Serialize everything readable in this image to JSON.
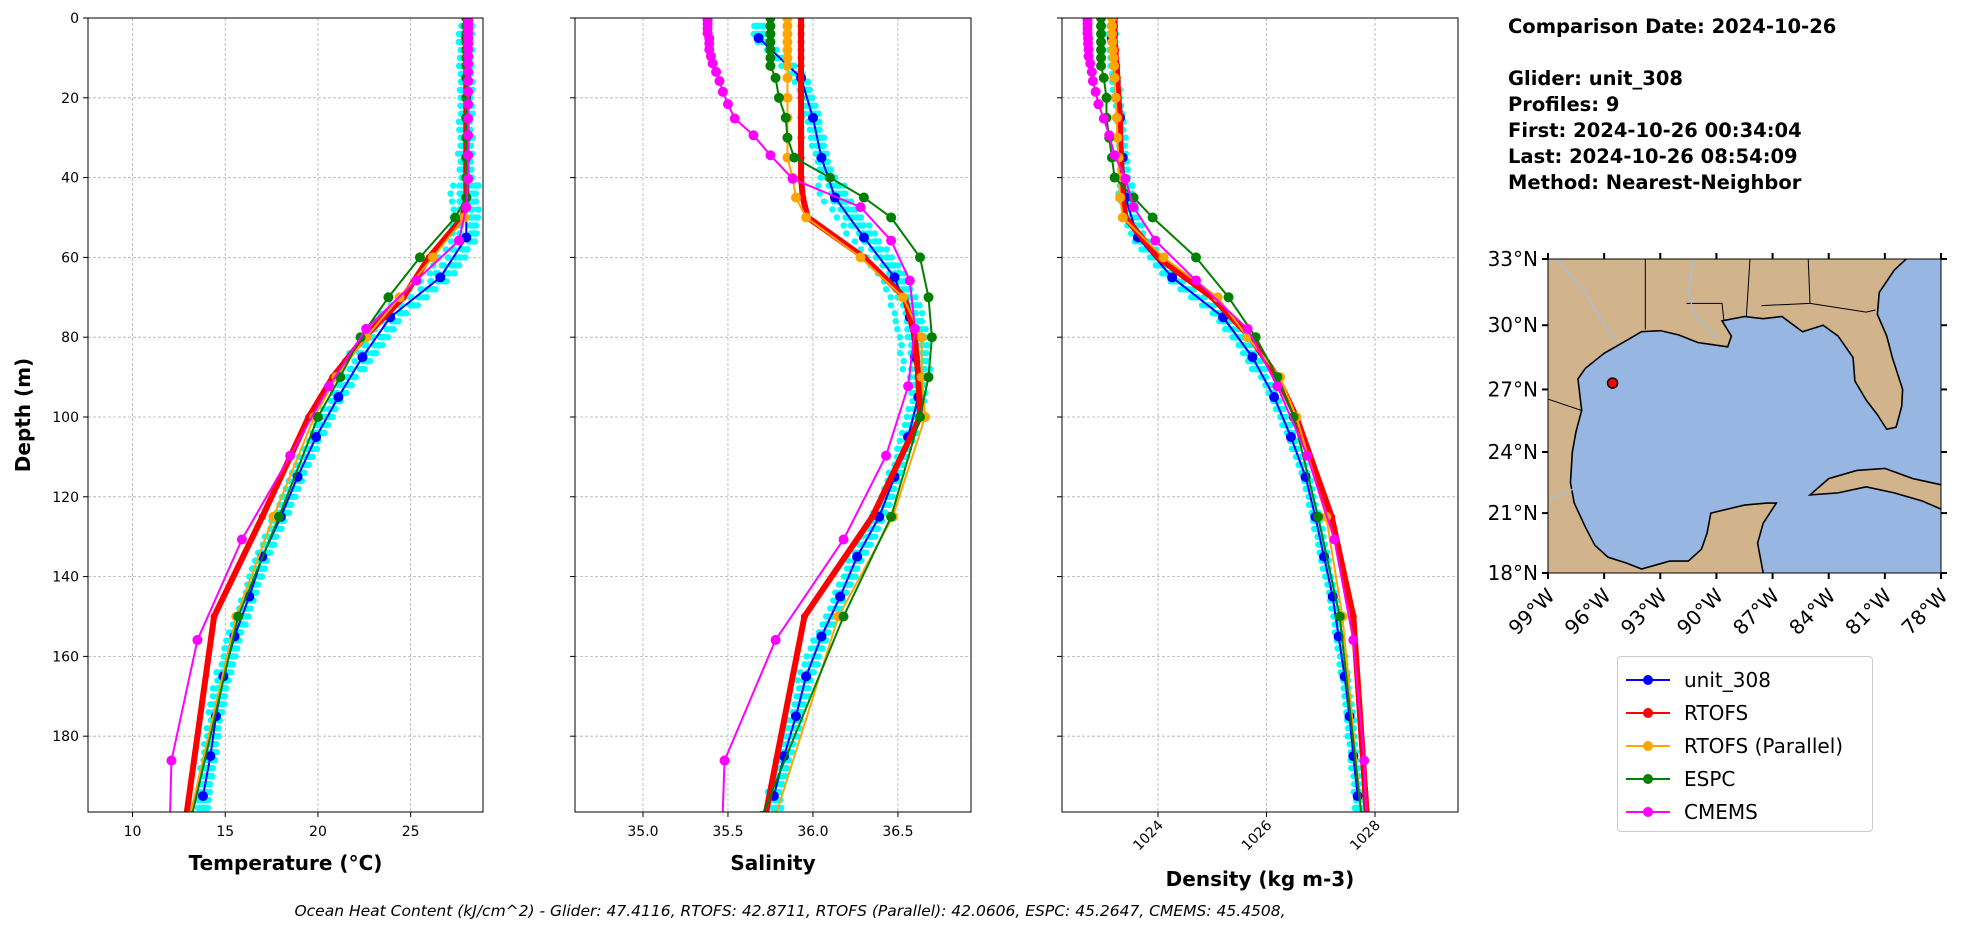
{
  "info": {
    "comparison_date": "Comparison Date: 2024-10-26",
    "glider": "Glider: unit_308",
    "profiles": "Profiles: 9",
    "first": "First: 2024-10-26 00:34:04",
    "last": "Last: 2024-10-26 08:54:09",
    "method": "Method: Nearest-Neighbor"
  },
  "caption": "Ocean Heat Content (kJ/cm^2) - Glider: 47.4116,  RTOFS: 42.8711,  RTOFS (Parallel): 42.0606,  ESPC: 45.2647,  CMEMS: 45.4508,",
  "legend": [
    {
      "label": "unit_308",
      "color": "#0000ff"
    },
    {
      "label": "RTOFS",
      "color": "#ff0000"
    },
    {
      "label": "RTOFS (Parallel)",
      "color": "#ffa500"
    },
    {
      "label": "ESPC",
      "color": "#008000"
    },
    {
      "label": "CMEMS",
      "color": "#ff00ff"
    }
  ],
  "chart_data": [
    {
      "type": "line",
      "panel": "temperature",
      "xlabel": "Temperature (°C)",
      "ylabel": "Depth (m)",
      "xlim": [
        7.6,
        28.9
      ],
      "ylim": [
        199,
        0
      ],
      "xticks": [
        "10",
        "15",
        "20",
        "25"
      ],
      "yticks": [
        "0",
        "20",
        "40",
        "60",
        "80",
        "100",
        "120",
        "140",
        "160",
        "180"
      ],
      "grid": true
    },
    {
      "type": "line",
      "panel": "salinity",
      "xlabel": "Salinity",
      "xlim": [
        34.6,
        36.93
      ],
      "ylim": [
        199,
        0
      ],
      "xticks": [
        "35.0",
        "35.5",
        "36.0",
        "36.5"
      ],
      "grid": true
    },
    {
      "type": "line",
      "panel": "density",
      "xlabel": "Density (kg m-3)",
      "xlim": [
        1022.23,
        1029.53
      ],
      "ylim": [
        199,
        0
      ],
      "xticks": [
        "1024",
        "1026",
        "1028"
      ],
      "grid": true
    }
  ],
  "series": [
    {
      "name": "unit_308",
      "color": "#0000ff",
      "raw_profiles_color": "#00ffff",
      "depth": [
        5,
        15,
        25,
        35,
        45,
        55,
        65,
        75,
        85,
        95,
        105,
        115,
        125,
        135,
        145,
        155,
        165,
        175,
        185,
        195
      ],
      "temperature": [
        28.0,
        28.0,
        28.0,
        28.0,
        28.0,
        28.0,
        26.6,
        23.9,
        22.4,
        21.1,
        19.9,
        18.9,
        18.0,
        17.0,
        16.3,
        15.5,
        14.9,
        14.5,
        14.2,
        13.8
      ],
      "salinity": [
        35.68,
        35.93,
        36.0,
        36.05,
        36.13,
        36.3,
        36.48,
        36.57,
        36.6,
        36.62,
        36.56,
        36.48,
        36.39,
        36.26,
        36.16,
        36.05,
        35.96,
        35.9,
        35.83,
        35.77
      ],
      "density": [
        1023.15,
        1023.2,
        1023.3,
        1023.35,
        1023.4,
        1023.63,
        1024.26,
        1025.2,
        1025.74,
        1026.14,
        1026.45,
        1026.72,
        1026.9,
        1027.06,
        1027.22,
        1027.33,
        1027.44,
        1027.53,
        1027.6,
        1027.68
      ]
    },
    {
      "name": "RTOFS",
      "color": "#ff0000",
      "depth": [
        0,
        2,
        4,
        6,
        8,
        10,
        12,
        15,
        20,
        25,
        30,
        35,
        40,
        45,
        50,
        60,
        70,
        80,
        90,
        100,
        125,
        150,
        200
      ],
      "temperature": [
        28.0,
        28.0,
        28.0,
        28.0,
        28.0,
        28.0,
        28.0,
        28.0,
        28.0,
        28.0,
        28.0,
        28.0,
        28.0,
        28.0,
        27.8,
        26.0,
        24.6,
        22.5,
        20.8,
        19.5,
        17.0,
        14.4,
        12.9
      ],
      "salinity": [
        35.93,
        35.93,
        35.93,
        35.93,
        35.93,
        35.93,
        35.93,
        35.93,
        35.93,
        35.93,
        35.93,
        35.93,
        35.93,
        35.94,
        35.97,
        36.3,
        36.54,
        36.6,
        36.62,
        36.63,
        36.35,
        35.95,
        35.72
      ],
      "density": [
        1023.2,
        1023.2,
        1023.2,
        1023.2,
        1023.22,
        1023.22,
        1023.24,
        1023.25,
        1023.27,
        1023.3,
        1023.3,
        1023.32,
        1023.33,
        1023.35,
        1023.4,
        1024.0,
        1025.0,
        1025.7,
        1026.2,
        1026.55,
        1027.2,
        1027.6,
        1027.85
      ]
    },
    {
      "name": "RTOFS (Parallel)",
      "color": "#ffa500",
      "depth": [
        0,
        2,
        4,
        6,
        8,
        10,
        12,
        15,
        20,
        25,
        30,
        35,
        40,
        45,
        50,
        60,
        70,
        80,
        90,
        100,
        125,
        150,
        200
      ],
      "temperature": [
        28.0,
        28.0,
        28.0,
        28.0,
        28.0,
        28.0,
        28.0,
        28.0,
        28.0,
        28.0,
        28.0,
        28.0,
        28.0,
        28.0,
        27.9,
        26.2,
        24.4,
        22.6,
        21.0,
        19.8,
        17.6,
        15.6,
        13.1
      ],
      "salinity": [
        35.85,
        35.85,
        35.85,
        35.85,
        35.85,
        35.85,
        35.85,
        35.85,
        35.85,
        35.85,
        35.85,
        35.85,
        35.88,
        35.9,
        35.96,
        36.28,
        36.53,
        36.64,
        36.64,
        36.66,
        36.47,
        36.15,
        35.78
      ],
      "density": [
        1023.15,
        1023.15,
        1023.15,
        1023.16,
        1023.17,
        1023.18,
        1023.19,
        1023.2,
        1023.22,
        1023.24,
        1023.25,
        1023.27,
        1023.28,
        1023.3,
        1023.35,
        1024.1,
        1025.1,
        1025.65,
        1026.25,
        1026.55,
        1027.1,
        1027.4,
        1027.75
      ]
    },
    {
      "name": "ESPC",
      "color": "#008000",
      "depth": [
        0,
        2,
        4,
        6,
        8,
        10,
        12,
        15,
        20,
        25,
        30,
        35,
        40,
        45,
        50,
        60,
        70,
        80,
        90,
        100,
        125,
        150,
        200
      ],
      "temperature": [
        28.0,
        28.0,
        28.0,
        28.0,
        28.0,
        28.0,
        28.0,
        28.0,
        28.0,
        28.0,
        28.0,
        28.0,
        28.0,
        28.0,
        27.4,
        25.5,
        23.8,
        22.3,
        21.2,
        20.0,
        17.9,
        15.7,
        13.2
      ],
      "salinity": [
        35.75,
        35.75,
        35.75,
        35.75,
        35.75,
        35.75,
        35.75,
        35.78,
        35.8,
        35.84,
        35.85,
        35.89,
        36.1,
        36.3,
        36.46,
        36.63,
        36.68,
        36.7,
        36.68,
        36.63,
        36.46,
        36.18,
        35.7
      ],
      "density": [
        1022.95,
        1022.95,
        1022.95,
        1022.95,
        1022.95,
        1022.95,
        1022.95,
        1023.0,
        1023.05,
        1023.05,
        1023.1,
        1023.15,
        1023.2,
        1023.55,
        1023.9,
        1024.7,
        1025.3,
        1025.8,
        1026.2,
        1026.5,
        1026.95,
        1027.35,
        1027.75
      ]
    },
    {
      "name": "CMEMS",
      "color": "#ff00ff",
      "depth": [
        0.5,
        1.5,
        2.6,
        3.8,
        5.1,
        6.4,
        7.9,
        9.6,
        11.4,
        13.5,
        15.8,
        18.5,
        21.6,
        25.2,
        29.4,
        34.4,
        40.3,
        47.4,
        55.8,
        65.8,
        77.9,
        92.3,
        109.7,
        130.7,
        155.9,
        186.1,
        222.5
      ],
      "temperature": [
        28.1,
        28.1,
        28.1,
        28.1,
        28.1,
        28.1,
        28.1,
        28.1,
        28.1,
        28.1,
        28.1,
        28.1,
        28.1,
        28.1,
        28.1,
        28.1,
        28.1,
        28.0,
        27.6,
        25.3,
        22.6,
        20.6,
        18.5,
        15.9,
        13.5,
        12.1,
        11.9
      ],
      "salinity": [
        35.38,
        35.38,
        35.38,
        35.38,
        35.39,
        35.39,
        35.39,
        35.4,
        35.41,
        35.43,
        35.45,
        35.47,
        35.5,
        35.54,
        35.65,
        35.75,
        35.88,
        36.28,
        36.46,
        36.57,
        36.6,
        36.56,
        36.43,
        36.18,
        35.78,
        35.48,
        35.45
      ],
      "density": [
        1022.7,
        1022.7,
        1022.7,
        1022.7,
        1022.71,
        1022.71,
        1022.72,
        1022.72,
        1022.75,
        1022.78,
        1022.8,
        1022.85,
        1022.9,
        1023.0,
        1023.1,
        1023.2,
        1023.4,
        1023.55,
        1023.95,
        1024.7,
        1025.65,
        1026.2,
        1026.75,
        1027.25,
        1027.6,
        1027.8,
        1027.9
      ]
    }
  ],
  "map": {
    "lon_range": [
      -99,
      -78
    ],
    "lat_range": [
      18,
      33
    ],
    "lat_ticks": [
      "18°N",
      "21°N",
      "24°N",
      "27°N",
      "30°N",
      "33°N"
    ],
    "lon_ticks": [
      "99°W",
      "96°W",
      "93°W",
      "90°W",
      "87°W",
      "84°W",
      "81°W",
      "78°W"
    ],
    "land_color": "#d2b48c",
    "water_color": "#97b6e1",
    "glider_position": {
      "lon": -95.55,
      "lat": 27.3,
      "color": "#ff0000"
    }
  }
}
